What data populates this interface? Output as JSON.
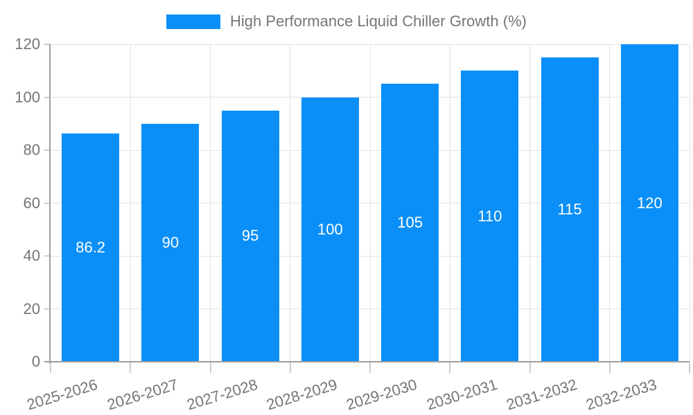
{
  "chart_data": {
    "type": "bar",
    "title": "High Performance Liquid Chiller Growth (%)",
    "categories": [
      "2025-2026",
      "2026-2027",
      "2027-2028",
      "2028-2029",
      "2029-2030",
      "2030-2031",
      "2031-2032",
      "2032-2033"
    ],
    "values": [
      86.2,
      90,
      95,
      100,
      105,
      110,
      115,
      120
    ],
    "value_labels": [
      "86.2",
      "90",
      "95",
      "100",
      "105",
      "110",
      "115",
      "120"
    ],
    "xlabel": "",
    "ylabel": "",
    "ylim": [
      0,
      120
    ],
    "yticks": [
      0,
      20,
      40,
      60,
      80,
      100,
      120
    ],
    "grid": true,
    "legend_position": "top-center",
    "colors": {
      "bar": "#0a8ff8",
      "axis": "#9e9e9e",
      "tick": "#cccccc",
      "grid": "#e3e3e3",
      "label": "#757575",
      "bar_label": "#ffffff",
      "background": "#ffffff"
    }
  }
}
